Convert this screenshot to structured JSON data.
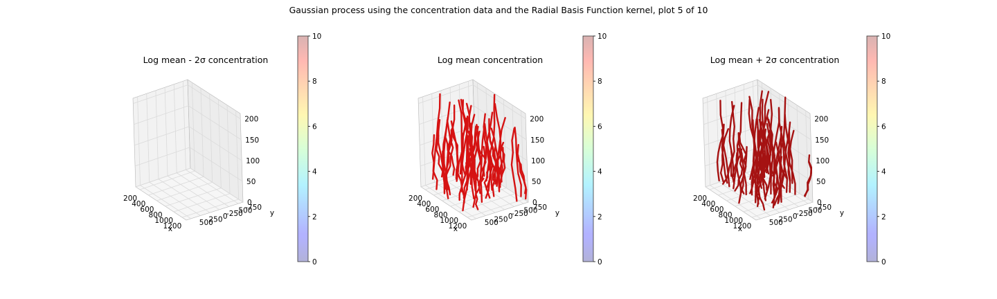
{
  "figure": {
    "suptitle": "Gaussian process using the  concentration data and the Radial Basis Function kernel, plot 5 of 10"
  },
  "colors": {
    "pane_fill": "#f2f2f2",
    "grid": "#dadada",
    "edge": "#b5b5b5",
    "mean_points": "#d40000",
    "upper_points": "#a00000"
  },
  "chart_data": [
    {
      "type": "scatter",
      "title": "Log mean - 2σ concentration",
      "xlabel": "x",
      "ylabel": "y",
      "zlabel": "",
      "xticks": [
        200,
        400,
        600,
        800,
        1000,
        1200
      ],
      "yticks": [
        -750,
        -500,
        -250,
        0,
        250,
        500
      ],
      "zticks": [
        0,
        50,
        100,
        150,
        200
      ],
      "xlim": [
        100,
        1250
      ],
      "ylim": [
        -850,
        600
      ],
      "zlim": [
        0,
        210
      ],
      "grid": true,
      "points": "none",
      "colorbar": {
        "ticks": [
          0,
          2,
          4,
          6,
          8,
          10
        ],
        "lim": [
          0,
          10
        ],
        "colormap": "jet",
        "alpha": 0.3
      }
    },
    {
      "type": "scatter",
      "title": "Log mean concentration",
      "xlabel": "x",
      "ylabel": "y",
      "zlabel": "",
      "xticks": [
        200,
        400,
        600,
        800,
        1000,
        1200
      ],
      "yticks": [
        -750,
        -500,
        -250,
        0,
        250,
        500
      ],
      "zticks": [
        0,
        50,
        100,
        150,
        200
      ],
      "xlim": [
        100,
        1250
      ],
      "ylim": [
        -850,
        600
      ],
      "zlim": [
        0,
        210
      ],
      "grid": true,
      "points": "dense red point cloud at colour scale maximum (~10)",
      "colorbar": {
        "ticks": [
          0,
          2,
          4,
          6,
          8,
          10
        ],
        "lim": [
          0,
          10
        ],
        "colormap": "jet",
        "alpha": 0.3
      }
    },
    {
      "type": "scatter",
      "title": "Log mean + 2σ concentration",
      "xlabel": "x",
      "ylabel": "y",
      "zlabel": "",
      "xticks": [
        200,
        400,
        600,
        800,
        1000,
        1200
      ],
      "yticks": [
        -750,
        -500,
        -250,
        0,
        250,
        500
      ],
      "zticks": [
        0,
        50,
        100,
        150,
        200
      ],
      "xlim": [
        100,
        1250
      ],
      "ylim": [
        -850,
        600
      ],
      "zlim": [
        0,
        210
      ],
      "grid": true,
      "points": "dense dark red point cloud at colour scale maximum (~10)",
      "colorbar": {
        "ticks": [
          0,
          2,
          4,
          6,
          8,
          10
        ],
        "lim": [
          0,
          10
        ],
        "colormap": "jet",
        "alpha": 0.3
      }
    }
  ]
}
